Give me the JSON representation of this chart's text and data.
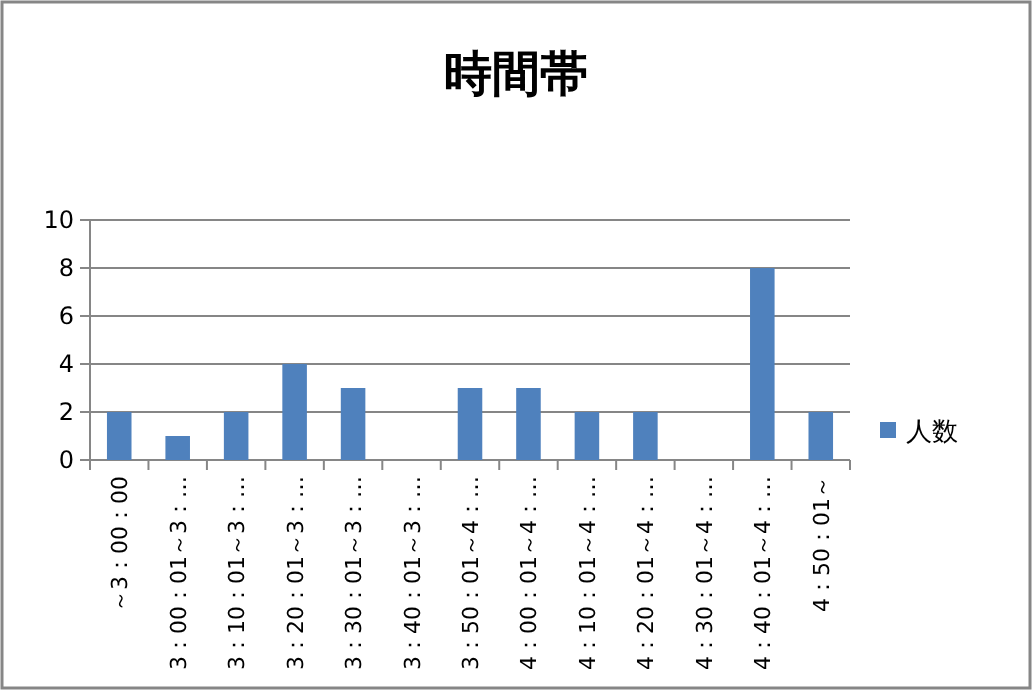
{
  "chart_data": {
    "type": "bar",
    "title": "時間帯",
    "categories": [
      "～3：00：00",
      "3：00：01～3：…",
      "3：10：01～3：…",
      "3：20：01～3：…",
      "3：30：01～3：…",
      "3：40：01～3：…",
      "3：50：01～4：…",
      "4：00：01～4：…",
      "4：10：01～4：…",
      "4：20：01～4：…",
      "4：30：01～4：…",
      "4：40：01～4：…",
      "4：50：01～"
    ],
    "series": [
      {
        "name": "人数",
        "color": "#4f81bd",
        "values": [
          2,
          1,
          2,
          4,
          3,
          0,
          3,
          3,
          2,
          2,
          0,
          8,
          2
        ]
      }
    ],
    "ylim": [
      0,
      10
    ],
    "yticks": [
      0,
      2,
      4,
      6,
      8,
      10
    ],
    "grid": "y",
    "legend": "right"
  }
}
